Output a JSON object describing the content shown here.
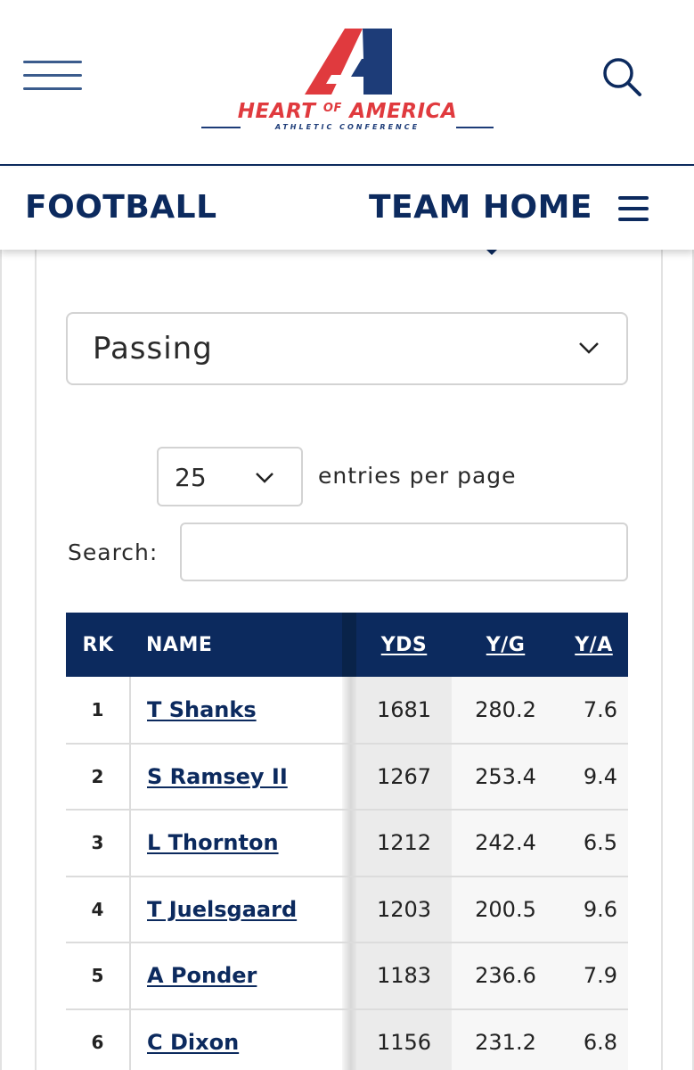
{
  "header": {
    "logo_main_left": "HEART",
    "logo_main_of": "OF",
    "logo_main_right": "AMERICA",
    "logo_sub": "ATHLETIC CONFERENCE",
    "brand_colors": {
      "navy": "#0c2a5e",
      "red": "#e03a3e"
    }
  },
  "team_bar": {
    "sport": "FOOTBALL",
    "team_home": "TEAM HOME"
  },
  "filters": {
    "stat_category": "Passing",
    "entries_value": "25",
    "entries_label": "entries per page",
    "search_label": "Search:",
    "search_value": ""
  },
  "table": {
    "columns": [
      "RK",
      "NAME",
      "YDS",
      "Y/G",
      "Y/A"
    ],
    "rows": [
      {
        "rk": "1",
        "name": "T Shanks",
        "yds": "1681",
        "yg": "280.2",
        "ya": "7.6"
      },
      {
        "rk": "2",
        "name": "S Ramsey II",
        "yds": "1267",
        "yg": "253.4",
        "ya": "9.4"
      },
      {
        "rk": "3",
        "name": "L Thornton",
        "yds": "1212",
        "yg": "242.4",
        "ya": "6.5"
      },
      {
        "rk": "4",
        "name": "T Juelsgaard",
        "yds": "1203",
        "yg": "200.5",
        "ya": "9.6"
      },
      {
        "rk": "5",
        "name": "A Ponder",
        "yds": "1183",
        "yg": "236.6",
        "ya": "7.9"
      },
      {
        "rk": "6",
        "name": "C Dixon",
        "yds": "1156",
        "yg": "231.2",
        "ya": "6.8"
      }
    ]
  }
}
